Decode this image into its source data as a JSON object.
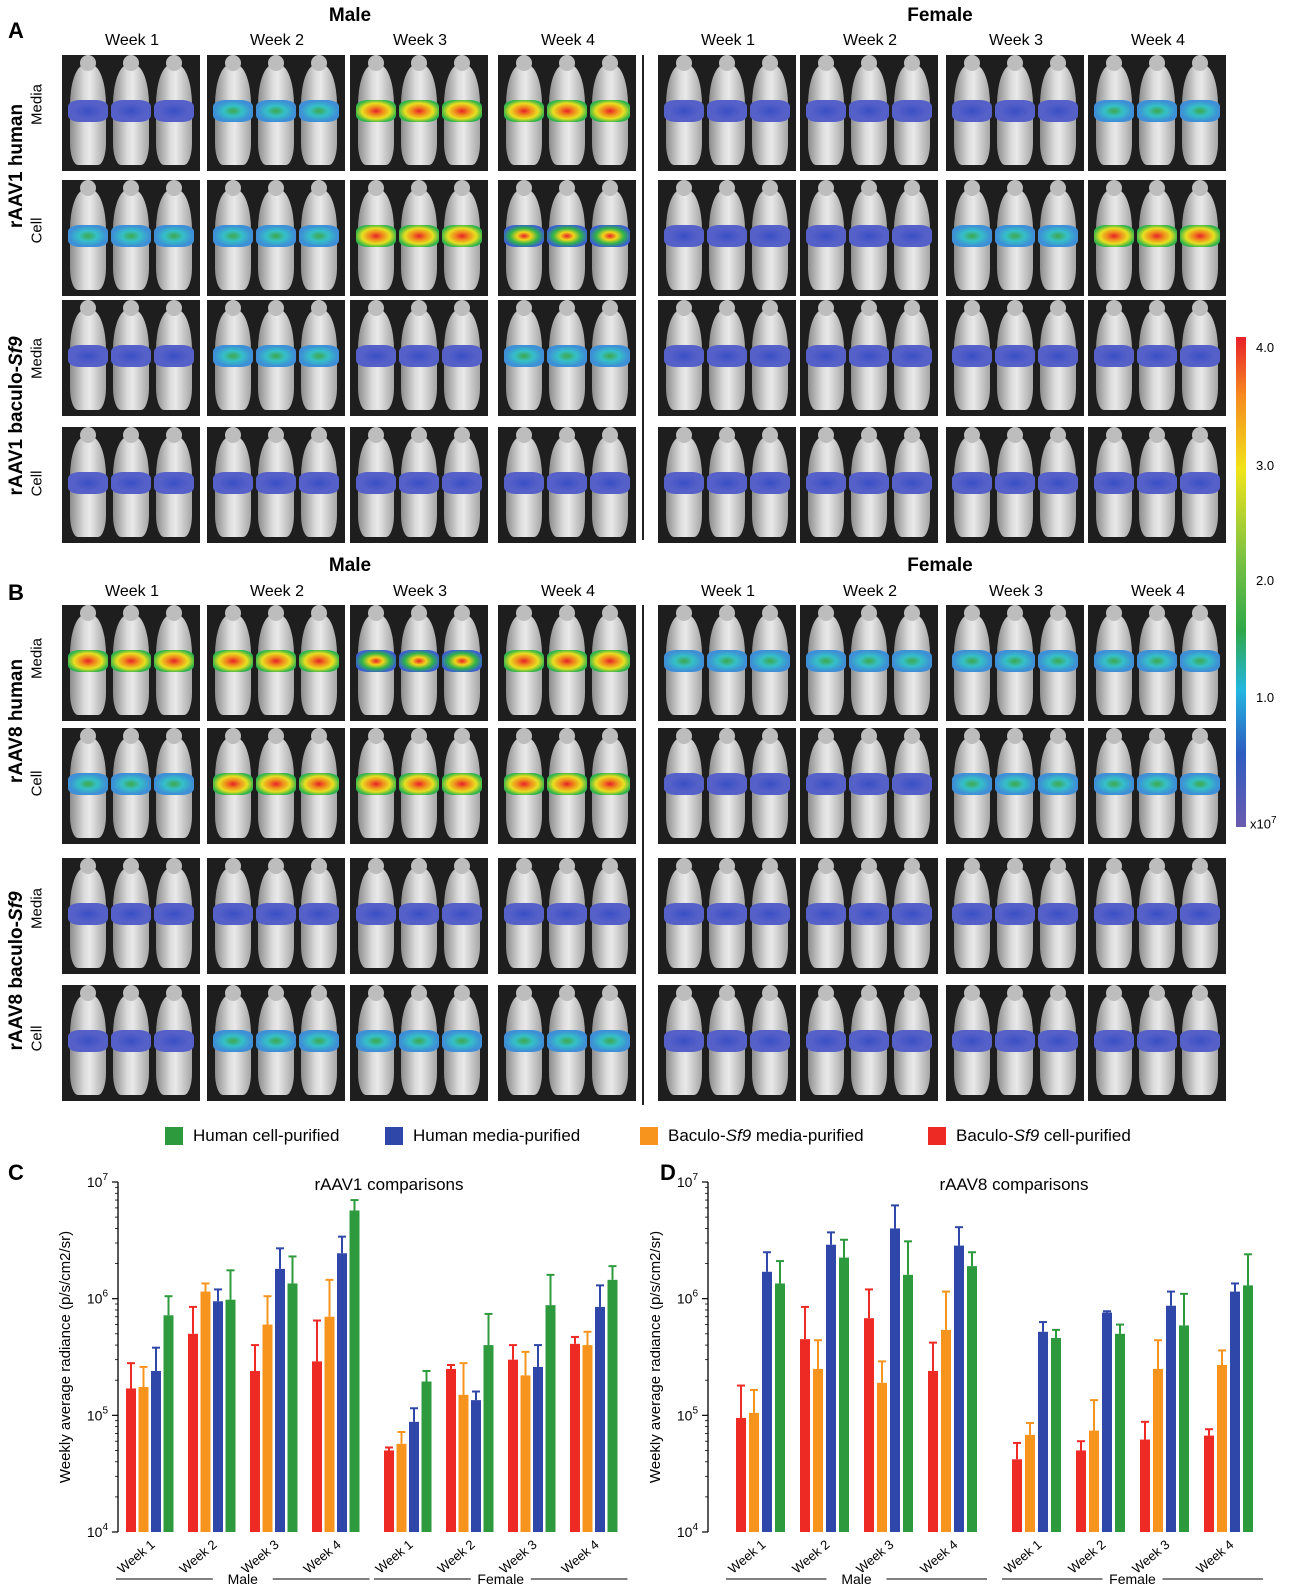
{
  "panels": {
    "A": "A",
    "B": "B",
    "C": "C",
    "D": "D"
  },
  "sex_titles": {
    "male": "Male",
    "female": "Female"
  },
  "weeks": [
    "Week 1",
    "Week 2",
    "Week 3",
    "Week 4"
  ],
  "row_labels": {
    "media": "Media",
    "cell": "Cell"
  },
  "group_labels": {
    "rAAV1_human": "rAAV1 human",
    "rAAV1_baculo_prefix": "rAAV1 baculo-",
    "baculo_italic": "Sf9",
    "rAAV8_human": "rAAV8 human",
    "rAAV8_baculo_prefix": "rAAV8 baculo-"
  },
  "colorbar": {
    "ticks": [
      "4.0",
      "3.0",
      "2.0",
      "1.0"
    ],
    "unit": "x10",
    "unit_exp": "7"
  },
  "legend": [
    {
      "label_prefix": "Human cell-purified",
      "label_italic": "",
      "label_suffix": "",
      "color": "#2e9a3e"
    },
    {
      "label_prefix": "Human media-purified",
      "label_italic": "",
      "label_suffix": "",
      "color": "#2f47a8"
    },
    {
      "label_prefix": "Baculo-",
      "label_italic": "Sf9",
      "label_suffix": " media-purified",
      "color": "#f7941d"
    },
    {
      "label_prefix": "Baculo-",
      "label_italic": "Sf9",
      "label_suffix": " cell-purified",
      "color": "#ee2a24"
    }
  ],
  "colors": {
    "green": "#2e9a3e",
    "blue": "#2f47a8",
    "orange": "#f7941d",
    "red": "#ee2a24"
  },
  "chart_data": [
    {
      "type": "bar",
      "title": "rAAV1 comparisons",
      "ylabel": "Weekly average radiance (p/s/cm2/sr)",
      "yscale": "log",
      "ylim": [
        10000,
        10000000
      ],
      "yticks": [
        "10^4",
        "10^5",
        "10^6",
        "10^7"
      ],
      "groups": [
        "Male",
        "Female"
      ],
      "categories": [
        "Week 1",
        "Week 2",
        "Week 3",
        "Week 4"
      ],
      "series": [
        {
          "name": "Baculo-Sf9 cell-purified",
          "color": "#ee2a24",
          "male": [
            170000,
            500000,
            240000,
            290000
          ],
          "female": [
            50000,
            250000,
            300000,
            410000
          ],
          "male_err": [
            280000,
            850000,
            400000,
            650000
          ],
          "female_err": [
            53000,
            270000,
            400000,
            470000
          ]
        },
        {
          "name": "Baculo-Sf9 media-purified",
          "color": "#f7941d",
          "male": [
            175000,
            1150000,
            600000,
            700000
          ],
          "female": [
            57000,
            150000,
            220000,
            400000
          ],
          "male_err": [
            260000,
            1350000,
            1050000,
            1450000
          ],
          "female_err": [
            72000,
            280000,
            350000,
            520000
          ]
        },
        {
          "name": "Human media-purified",
          "color": "#2f47a8",
          "male": [
            240000,
            950000,
            1800000,
            2450000
          ],
          "female": [
            88000,
            135000,
            260000,
            850000
          ],
          "male_err": [
            380000,
            1200000,
            2700000,
            3400000
          ],
          "female_err": [
            115000,
            160000,
            400000,
            1300000
          ]
        },
        {
          "name": "Human cell-purified",
          "color": "#2e9a3e",
          "male": [
            720000,
            980000,
            1350000,
            5700000
          ],
          "female": [
            195000,
            400000,
            880000,
            1450000
          ],
          "male_err": [
            1050000,
            1750000,
            2300000,
            7000000
          ],
          "female_err": [
            240000,
            740000,
            1600000,
            1900000
          ]
        }
      ],
      "group_labels": [
        "Male",
        "Female"
      ]
    },
    {
      "type": "bar",
      "title": "rAAV8 comparisons",
      "ylabel": "Weekly average radiance (p/s/cm2/sr)",
      "yscale": "log",
      "ylim": [
        10000,
        10000000
      ],
      "yticks": [
        "10^4",
        "10^5",
        "10^6",
        "10^7"
      ],
      "groups": [
        "Male",
        "Female"
      ],
      "categories": [
        "Week 1",
        "Week 2",
        "Week 3",
        "Week 4"
      ],
      "series": [
        {
          "name": "Baculo-Sf9 cell-purified",
          "color": "#ee2a24",
          "male": [
            95000,
            450000,
            680000,
            240000
          ],
          "female": [
            42000,
            50000,
            62000,
            67000
          ],
          "male_err": [
            180000,
            850000,
            1200000,
            420000
          ],
          "female_err": [
            58000,
            60000,
            88000,
            76000
          ]
        },
        {
          "name": "Baculo-Sf9 media-purified",
          "color": "#f7941d",
          "male": [
            105000,
            250000,
            190000,
            540000
          ],
          "female": [
            68000,
            74000,
            250000,
            270000
          ],
          "male_err": [
            165000,
            440000,
            290000,
            1150000
          ],
          "female_err": [
            86000,
            135000,
            440000,
            360000
          ]
        },
        {
          "name": "Human media-purified",
          "color": "#2f47a8",
          "male": [
            1700000,
            2900000,
            4000000,
            2850000
          ],
          "female": [
            520000,
            760000,
            870000,
            1150000
          ],
          "male_err": [
            2500000,
            3700000,
            6300000,
            4100000
          ],
          "female_err": [
            630000,
            780000,
            1150000,
            1350000
          ]
        },
        {
          "name": "Human cell-purified",
          "color": "#2e9a3e",
          "male": [
            1350000,
            2250000,
            1600000,
            1900000
          ],
          "female": [
            460000,
            500000,
            590000,
            1300000
          ],
          "male_err": [
            2100000,
            3200000,
            3100000,
            2500000
          ],
          "female_err": [
            540000,
            600000,
            1100000,
            2400000
          ]
        }
      ],
      "group_labels": [
        "Male",
        "Female"
      ]
    }
  ]
}
